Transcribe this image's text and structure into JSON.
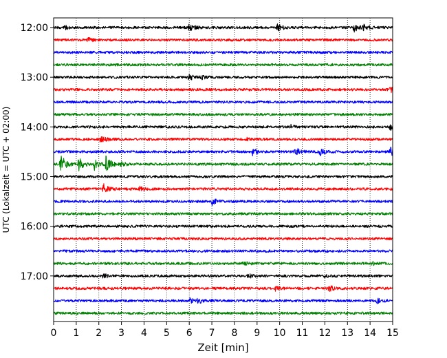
{
  "chart_data": {
    "type": "line",
    "title": "",
    "xlabel": "Zeit  [min]",
    "ylabel": "UTC (Lokalzeit = UTC + 02:00)",
    "xlim": [
      0,
      15
    ],
    "x_ticks": [
      "0",
      "1",
      "2",
      "3",
      "4",
      "5",
      "6",
      "7",
      "8",
      "9",
      "10",
      "11",
      "12",
      "13",
      "14",
      "15"
    ],
    "y_ticks": [
      "12:00",
      "13:00",
      "14:00",
      "15:00",
      "16:00",
      "17:00"
    ],
    "row_minutes": 15,
    "start_time": "12:00",
    "grid_x": true,
    "colors": [
      "#000000",
      "#ff0000",
      "#0000ff",
      "#008000"
    ],
    "series": [
      {
        "start": "12:00",
        "color": "#000000",
        "events": [
          [
            0.5,
            0.35
          ],
          [
            6.0,
            0.9
          ],
          [
            9.9,
            0.8
          ],
          [
            13.3,
            0.75
          ],
          [
            13.7,
            0.6
          ]
        ]
      },
      {
        "start": "12:15",
        "color": "#ff0000",
        "events": [
          [
            1.5,
            0.4
          ]
        ]
      },
      {
        "start": "12:30",
        "color": "#0000ff",
        "events": []
      },
      {
        "start": "12:45",
        "color": "#008000",
        "events": []
      },
      {
        "start": "13:00",
        "color": "#000000",
        "events": [
          [
            6.0,
            0.8
          ],
          [
            6.5,
            0.4
          ]
        ]
      },
      {
        "start": "13:15",
        "color": "#ff0000",
        "events": [
          [
            14.9,
            0.5
          ]
        ]
      },
      {
        "start": "13:30",
        "color": "#0000ff",
        "events": []
      },
      {
        "start": "13:45",
        "color": "#008000",
        "events": []
      },
      {
        "start": "14:00",
        "color": "#000000",
        "events": [
          [
            10.5,
            0.3
          ],
          [
            14.9,
            0.9
          ]
        ]
      },
      {
        "start": "14:15",
        "color": "#ff0000",
        "events": [
          [
            2.1,
            0.8
          ],
          [
            8.5,
            0.4
          ]
        ]
      },
      {
        "start": "14:30",
        "color": "#0000ff",
        "events": [
          [
            8.8,
            0.7
          ],
          [
            10.7,
            0.8
          ],
          [
            11.8,
            0.7
          ],
          [
            14.9,
            0.8
          ]
        ]
      },
      {
        "start": "14:45",
        "color": "#008000",
        "events": [
          [
            0.3,
            2.2
          ],
          [
            1.1,
            1.4
          ],
          [
            1.8,
            1.3
          ],
          [
            2.3,
            1.8
          ],
          [
            3.0,
            0.4
          ]
        ]
      },
      {
        "start": "15:00",
        "color": "#000000",
        "events": []
      },
      {
        "start": "15:15",
        "color": "#ff0000",
        "events": [
          [
            2.2,
            1.1
          ],
          [
            3.8,
            0.4
          ]
        ]
      },
      {
        "start": "15:30",
        "color": "#0000ff",
        "events": [
          [
            7.0,
            0.7
          ]
        ]
      },
      {
        "start": "15:45",
        "color": "#008000",
        "events": []
      },
      {
        "start": "16:00",
        "color": "#000000",
        "events": []
      },
      {
        "start": "16:15",
        "color": "#ff0000",
        "events": []
      },
      {
        "start": "16:30",
        "color": "#0000ff",
        "events": []
      },
      {
        "start": "16:45",
        "color": "#008000",
        "events": [
          [
            8.4,
            0.4
          ],
          [
            14.1,
            0.4
          ]
        ]
      },
      {
        "start": "17:00",
        "color": "#000000",
        "events": [
          [
            2.2,
            0.4
          ],
          [
            8.6,
            0.4
          ],
          [
            12.0,
            0.3
          ]
        ]
      },
      {
        "start": "17:15",
        "color": "#ff0000",
        "events": [
          [
            9.8,
            0.5
          ],
          [
            12.2,
            0.5
          ]
        ]
      },
      {
        "start": "17:30",
        "color": "#0000ff",
        "events": [
          [
            6.0,
            0.5
          ],
          [
            6.4,
            0.4
          ],
          [
            14.3,
            0.5
          ]
        ]
      },
      {
        "start": "17:45",
        "color": "#008000",
        "events": []
      }
    ]
  }
}
